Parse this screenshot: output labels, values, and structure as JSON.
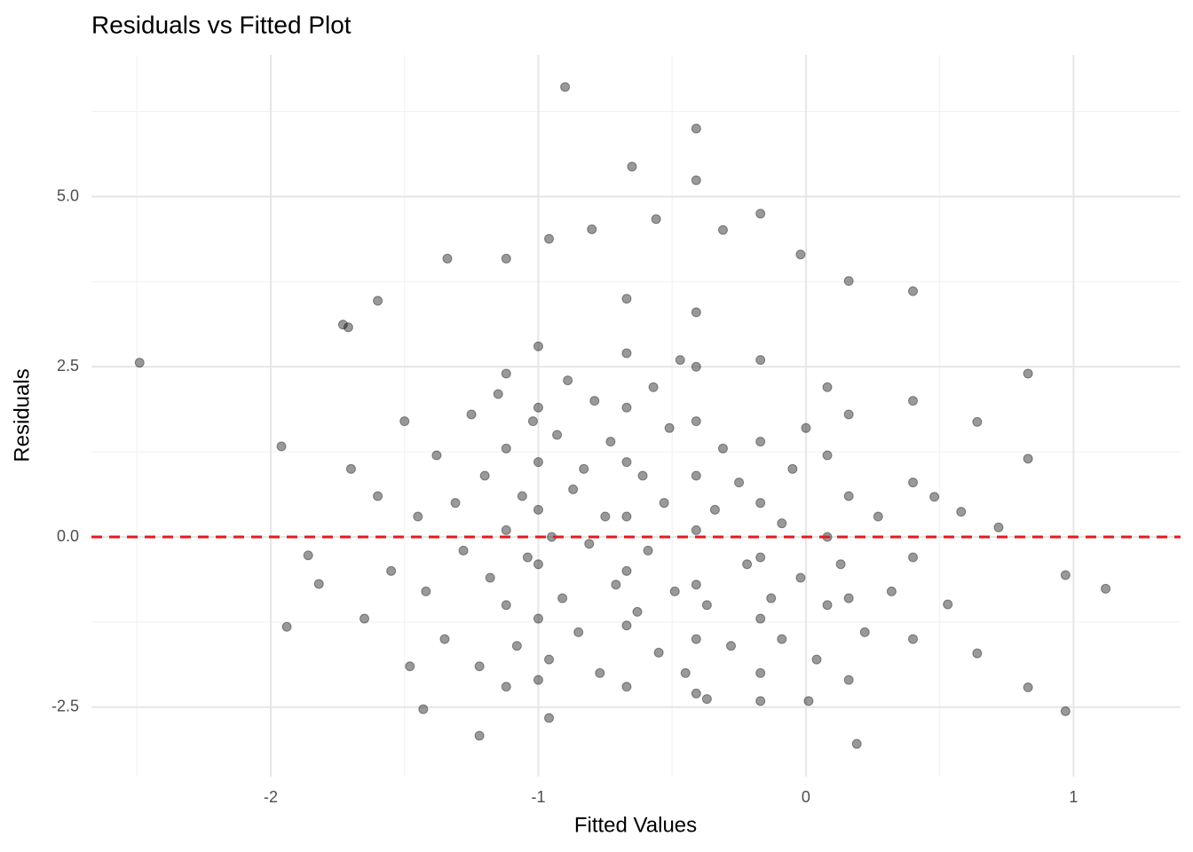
{
  "chart_data": {
    "type": "scatter",
    "title": "Residuals vs Fitted Plot",
    "x_label": "Fitted Values",
    "y_label": "Residuals",
    "xlim": [
      -2.67,
      1.4
    ],
    "ylim": [
      -3.52,
      7.08
    ],
    "xticks": [
      -2,
      -1,
      0,
      1
    ],
    "yticks": [
      {
        "value": -2.5,
        "label": "-2.5"
      },
      {
        "value": 0,
        "label": "0.0"
      },
      {
        "value": 2.5,
        "label": "2.5"
      },
      {
        "value": 5,
        "label": "5.0"
      }
    ],
    "x_minor_grid": [
      -2.5,
      -1.5,
      -0.5,
      0.5
    ],
    "y_minor_grid": [
      -1.25,
      1.25,
      3.75,
      6.25
    ],
    "grid": true,
    "point_color": "#000000",
    "point_opacity": 0.4,
    "reference_line": {
      "value": 0,
      "color": "#e41a1c",
      "dashed": true
    },
    "x": [
      -2.49,
      -1.96,
      -1.94,
      -1.73,
      -1.71,
      -1.6,
      -0.9,
      -0.41,
      -0.65,
      -0.41,
      -0.02,
      -0.17,
      0.4,
      0.83,
      1.12,
      0.97,
      0.19,
      -1.22,
      -0.96,
      -1.43,
      0.64,
      0.72,
      -0.31,
      0.16,
      0.08,
      0.97,
      0.83,
      0.48,
      0.53,
      0.58,
      0.83,
      0.64,
      0.01,
      -0.17,
      -0.37,
      -1.82,
      -1.86,
      -1.34,
      -1.12,
      -0.8,
      -0.56,
      -0.96,
      -1.45,
      -1.42,
      -1.38,
      -1.35,
      -1.31,
      -1.28,
      -1.25,
      -1.22,
      -1.2,
      -1.18,
      -1.15,
      -1.12,
      -1.12,
      -1.12,
      -1.12,
      -1.12,
      -1.08,
      -1.06,
      -1.04,
      -1.02,
      -1.0,
      -1.0,
      -1.0,
      -1.0,
      -1.0,
      -1.0,
      -1.0,
      -0.96,
      -0.95,
      -0.93,
      -0.91,
      -0.89,
      -0.87,
      -0.85,
      -0.83,
      -0.81,
      -0.79,
      -0.77,
      -0.75,
      -0.73,
      -0.71,
      -0.67,
      -0.67,
      -0.67,
      -0.67,
      -0.67,
      -0.67,
      -0.67,
      -0.67,
      -0.63,
      -0.61,
      -0.59,
      -0.57,
      -0.55,
      -0.53,
      -0.51,
      -0.49,
      -0.47,
      -0.45,
      -0.41,
      -0.41,
      -0.41,
      -0.41,
      -0.41,
      -0.41,
      -0.41,
      -0.41,
      -0.37,
      -0.34,
      -0.31,
      -0.28,
      -0.25,
      -0.22,
      -0.17,
      -0.17,
      -0.17,
      -0.17,
      -0.17,
      -0.17,
      -0.13,
      -0.09,
      -0.09,
      -0.05,
      -0.02,
      0.0,
      0.04,
      0.08,
      0.08,
      0.08,
      0.13,
      0.16,
      0.16,
      0.16,
      0.16,
      0.22,
      0.27,
      0.32,
      0.4,
      0.4,
      0.4,
      0.4,
      -1.55,
      -1.6,
      -1.65,
      -1.7,
      -1.5,
      -1.48
    ],
    "y": [
      2.56,
      1.33,
      -1.32,
      3.12,
      3.08,
      3.47,
      6.61,
      6.0,
      5.44,
      5.24,
      4.15,
      4.75,
      3.61,
      2.4,
      -0.76,
      -2.56,
      -3.04,
      -2.92,
      -2.66,
      -2.53,
      1.69,
      0.14,
      4.51,
      3.76,
      2.2,
      -0.56,
      1.15,
      0.59,
      -0.99,
      0.37,
      -2.21,
      -1.71,
      -2.41,
      -2.41,
      -2.38,
      -0.69,
      -0.27,
      4.09,
      4.09,
      4.52,
      4.67,
      4.38,
      0.3,
      -0.8,
      1.2,
      -1.5,
      0.5,
      -0.2,
      1.8,
      -1.9,
      0.9,
      -0.6,
      2.1,
      -2.2,
      -1.0,
      0.1,
      1.3,
      2.4,
      -1.6,
      0.6,
      -0.3,
      1.7,
      -2.1,
      -1.2,
      -0.4,
      0.4,
      1.1,
      1.9,
      2.8,
      -1.8,
      0.0,
      1.5,
      -0.9,
      2.3,
      0.7,
      -1.4,
      1.0,
      -0.1,
      2.0,
      -2.0,
      0.3,
      1.4,
      -0.7,
      -2.2,
      -1.3,
      -0.5,
      0.3,
      1.1,
      1.9,
      2.7,
      3.5,
      -1.1,
      0.9,
      -0.2,
      2.2,
      -1.7,
      0.5,
      1.6,
      -0.8,
      2.6,
      -2.0,
      -2.3,
      -1.5,
      -0.7,
      0.1,
      0.9,
      1.7,
      2.5,
      3.3,
      -1.0,
      0.4,
      1.3,
      -1.6,
      0.8,
      -0.4,
      -2.0,
      -1.2,
      -0.3,
      0.5,
      1.4,
      2.6,
      -0.9,
      0.2,
      -1.5,
      1.0,
      -0.6,
      1.6,
      -1.8,
      -1.0,
      0.0,
      1.2,
      -0.4,
      -2.1,
      -0.9,
      0.6,
      1.8,
      -1.4,
      0.3,
      -0.8,
      -1.5,
      -0.3,
      0.8,
      2.0,
      -0.5,
      0.6,
      -1.2,
      1.0,
      1.7,
      -1.9
    ]
  }
}
